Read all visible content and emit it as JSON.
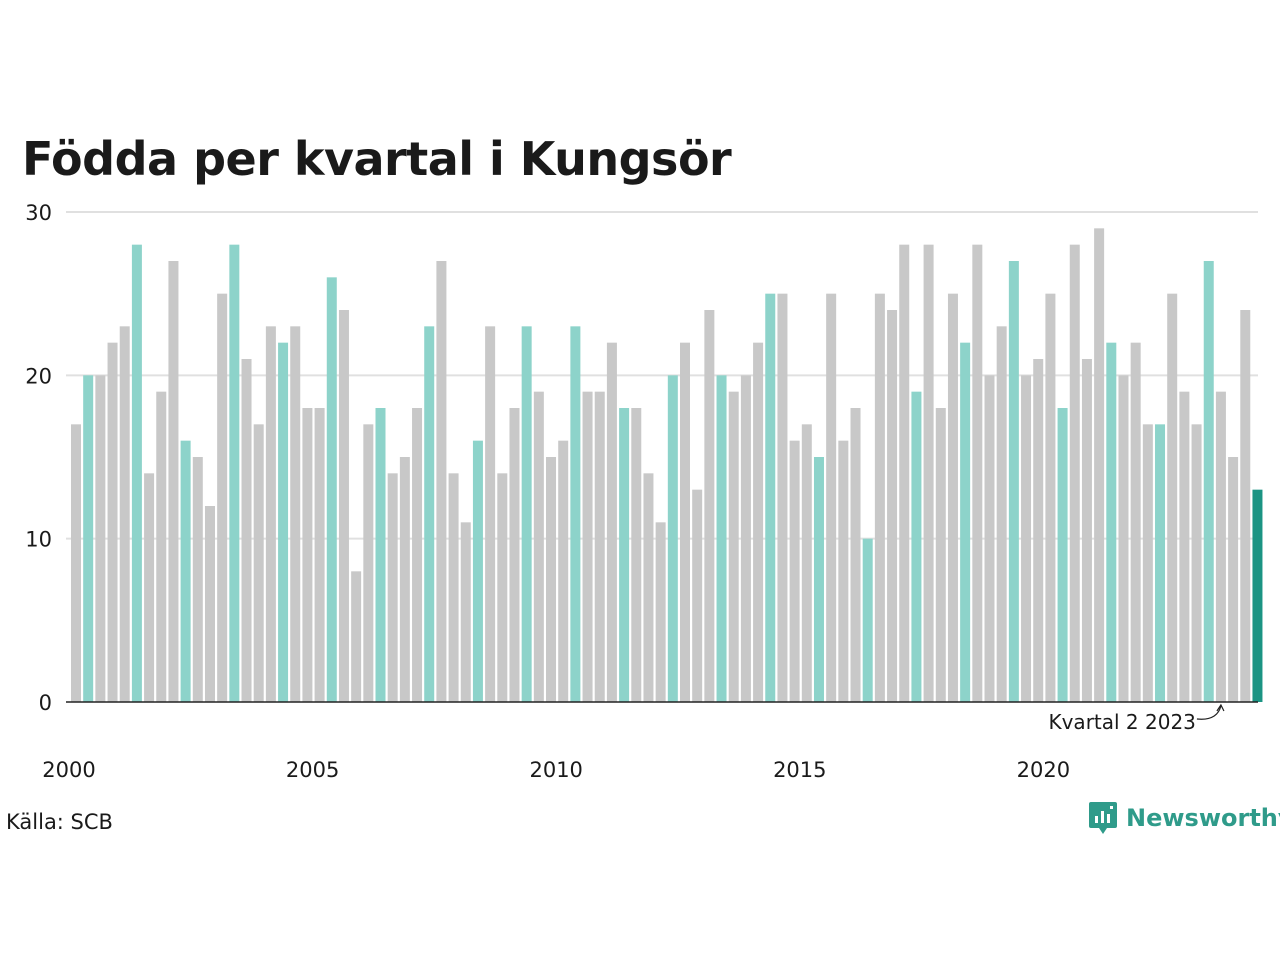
{
  "chart_data": {
    "type": "bar",
    "title": "Födda per kvartal i Kungsör",
    "xlabel": "",
    "ylabel": "",
    "ylim": [
      0,
      30
    ],
    "y_ticks": [
      "0",
      "10",
      "20",
      "30"
    ],
    "x_tick_labels": [
      "2000",
      "2005",
      "2010",
      "2015",
      "2020"
    ],
    "start_year": 2000,
    "grid": true,
    "highlight_rule": "Quarter 2 of each year highlighted; latest quarter in dark teal",
    "annotation": "Kvartal 2 2023",
    "annotation_target_index": 94,
    "colors": {
      "default": "#c8c8c8",
      "quarter2": "#8dd3ca",
      "latest": "#1b9483",
      "grid": "#e0e0e0",
      "axis": "#222222"
    },
    "values": [
      17,
      20,
      20,
      22,
      23,
      28,
      14,
      19,
      27,
      16,
      15,
      12,
      25,
      28,
      21,
      17,
      23,
      22,
      23,
      18,
      18,
      26,
      24,
      8,
      17,
      18,
      14,
      15,
      18,
      23,
      27,
      14,
      11,
      16,
      23,
      14,
      18,
      23,
      19,
      15,
      16,
      23,
      19,
      19,
      22,
      18,
      18,
      14,
      11,
      20,
      22,
      13,
      24,
      20,
      19,
      20,
      22,
      25,
      25,
      16,
      17,
      15,
      25,
      16,
      18,
      10,
      25,
      24,
      28,
      19,
      28,
      18,
      25,
      22,
      28,
      20,
      23,
      27,
      20,
      21,
      25,
      18,
      28,
      21,
      29,
      22,
      20,
      22,
      17,
      17,
      25,
      19,
      17,
      27,
      19,
      15,
      24,
      13
    ]
  },
  "footer": {
    "source": "Källa: SCB",
    "brand": "Newsworthy",
    "brand_icon": "newsworthy-logo-icon"
  }
}
